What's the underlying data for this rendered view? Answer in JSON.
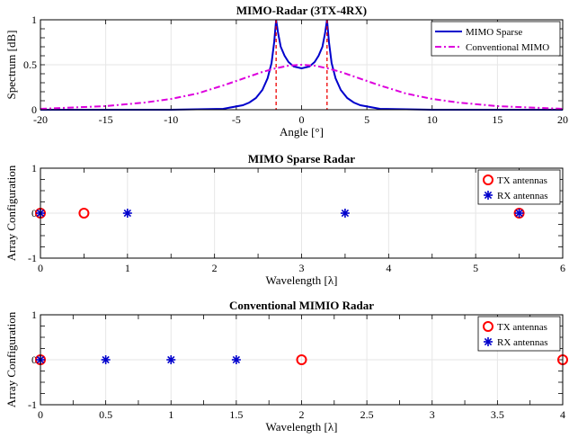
{
  "colors": {
    "sparse": "#0000cc",
    "conventional": "#dd00dd",
    "tx": "#ff0000",
    "rx": "#0000cc",
    "marker_line": "#ee0000",
    "grid": "#e6e6e6"
  },
  "chart_data": [
    {
      "type": "line",
      "title": "MIMO-Radar (3TX-4RX)",
      "xlabel": "Angle [°]",
      "ylabel": "Spectrum [dB]",
      "xlim": [
        -20,
        20
      ],
      "ylim": [
        0,
        1
      ],
      "xticks": [
        "-20",
        "-15",
        "-10",
        "-5",
        "0",
        "5",
        "10",
        "15",
        "20"
      ],
      "yticks": [
        "0",
        "0.5",
        "1"
      ],
      "grid": true,
      "legend_position": "top-right",
      "series": [
        {
          "name": "MIMO Sparse",
          "style": "solid",
          "x": [
            -20,
            -10,
            -6,
            -4.5,
            -4,
            -3.5,
            -3,
            -2.6,
            -2.3,
            -2.1,
            -1.95,
            -1.8,
            -1.6,
            -1.3,
            -1,
            -0.6,
            0,
            0.6,
            1,
            1.3,
            1.6,
            1.8,
            1.95,
            2.1,
            2.3,
            2.6,
            3,
            3.5,
            4,
            4.5,
            6,
            10,
            20
          ],
          "y": [
            0,
            0,
            0.01,
            0.05,
            0.08,
            0.13,
            0.22,
            0.35,
            0.52,
            0.75,
            1.0,
            0.85,
            0.7,
            0.6,
            0.53,
            0.48,
            0.46,
            0.48,
            0.53,
            0.6,
            0.7,
            0.85,
            1.0,
            0.75,
            0.52,
            0.35,
            0.22,
            0.13,
            0.08,
            0.05,
            0.01,
            0,
            0
          ]
        },
        {
          "name": "Conventional MIMO",
          "style": "dash-dot",
          "x": [
            -20,
            -15,
            -12,
            -10,
            -8,
            -6,
            -5,
            -4,
            -3,
            -2,
            -1,
            0,
            1,
            2,
            3,
            4,
            5,
            6,
            8,
            10,
            12,
            15,
            20
          ],
          "y": [
            0.01,
            0.04,
            0.08,
            0.12,
            0.18,
            0.27,
            0.32,
            0.37,
            0.42,
            0.46,
            0.49,
            0.5,
            0.49,
            0.46,
            0.42,
            0.37,
            0.32,
            0.27,
            0.18,
            0.12,
            0.08,
            0.04,
            0.01
          ]
        }
      ],
      "markers": [
        {
          "x": -1.95,
          "y": 1.0
        },
        {
          "x": 1.95,
          "y": 1.0
        }
      ]
    },
    {
      "type": "scatter",
      "title": "MIMO Sparse Radar",
      "xlabel": "Wavelength [λ]",
      "ylabel": "Array Configuration",
      "xlim": [
        0,
        6
      ],
      "ylim": [
        -1,
        1
      ],
      "xticks": [
        "0",
        "1",
        "2",
        "3",
        "4",
        "5",
        "6"
      ],
      "yticks": [
        "-1",
        "0",
        "1"
      ],
      "grid": true,
      "legend_position": "top-right",
      "series": [
        {
          "name": "TX antennas",
          "marker": "circle",
          "x": [
            0,
            0.5,
            5.5
          ],
          "y": [
            0,
            0,
            0
          ]
        },
        {
          "name": "RX antennas",
          "marker": "asterisk",
          "x": [
            0,
            1,
            3.5,
            5.5
          ],
          "y": [
            0,
            0,
            0,
            0
          ]
        }
      ]
    },
    {
      "type": "scatter",
      "title": "Conventional MIMIO Radar",
      "xlabel": "Wavelength [λ]",
      "ylabel": "Array Configuration",
      "xlim": [
        0,
        4
      ],
      "ylim": [
        -1,
        1
      ],
      "xticks": [
        "0",
        "0.5",
        "1",
        "1.5",
        "2",
        "2.5",
        "3",
        "3.5",
        "4"
      ],
      "yticks": [
        "-1",
        "0",
        "1"
      ],
      "grid": true,
      "legend_position": "top-right",
      "series": [
        {
          "name": "TX antennas",
          "marker": "circle",
          "x": [
            0,
            2,
            4
          ],
          "y": [
            0,
            0,
            0
          ]
        },
        {
          "name": "RX antennas",
          "marker": "asterisk",
          "x": [
            0,
            0.5,
            1,
            1.5
          ],
          "y": [
            0,
            0,
            0,
            0
          ]
        }
      ]
    }
  ]
}
